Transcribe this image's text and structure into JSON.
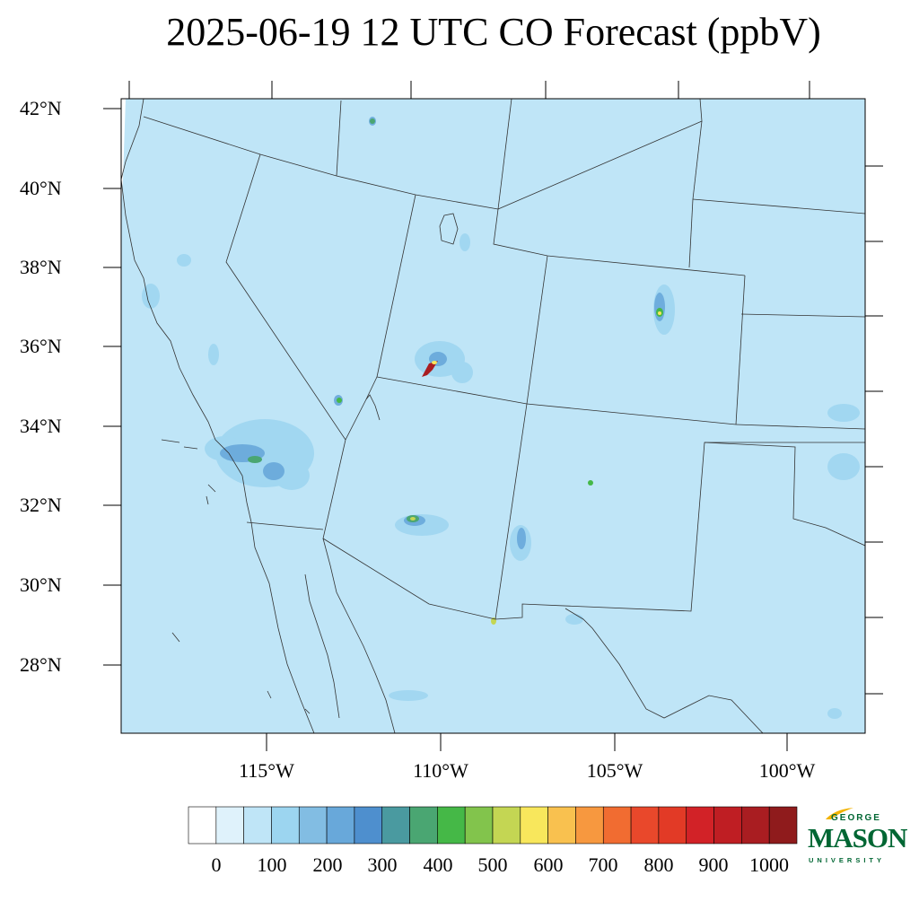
{
  "title": "2025-06-19 12 UTC CO Forecast (ppbV)",
  "map": {
    "background_color": "#bfe5f7",
    "latitude_labels": [
      "42°N",
      "40°N",
      "38°N",
      "36°N",
      "34°N",
      "32°N",
      "30°N",
      "28°N"
    ],
    "longitude_labels": [
      "115°W",
      "110°W",
      "105°W",
      "100°W"
    ]
  },
  "colorbar": {
    "colors": [
      "#ffffff",
      "#dff2fb",
      "#bfe5f7",
      "#9cd5f0",
      "#82bde3",
      "#68a8da",
      "#4e8fce",
      "#4a9aa0",
      "#4aa672",
      "#45b847",
      "#82c44c",
      "#c4d653",
      "#f8e75c",
      "#f9c14f",
      "#f7983f",
      "#f16c31",
      "#e9482b",
      "#e23a26",
      "#d22227",
      "#bf1e23",
      "#a91d21",
      "#8f1b1c"
    ],
    "tick_labels": [
      "0",
      "100",
      "200",
      "300",
      "400",
      "500",
      "600",
      "700",
      "800",
      "900",
      "1000"
    ]
  },
  "logo": {
    "line1": "GEORGE",
    "line2": "MASON",
    "line3": "UNIVERSITY",
    "color": "#006633",
    "accent_color": "#f2b300"
  }
}
